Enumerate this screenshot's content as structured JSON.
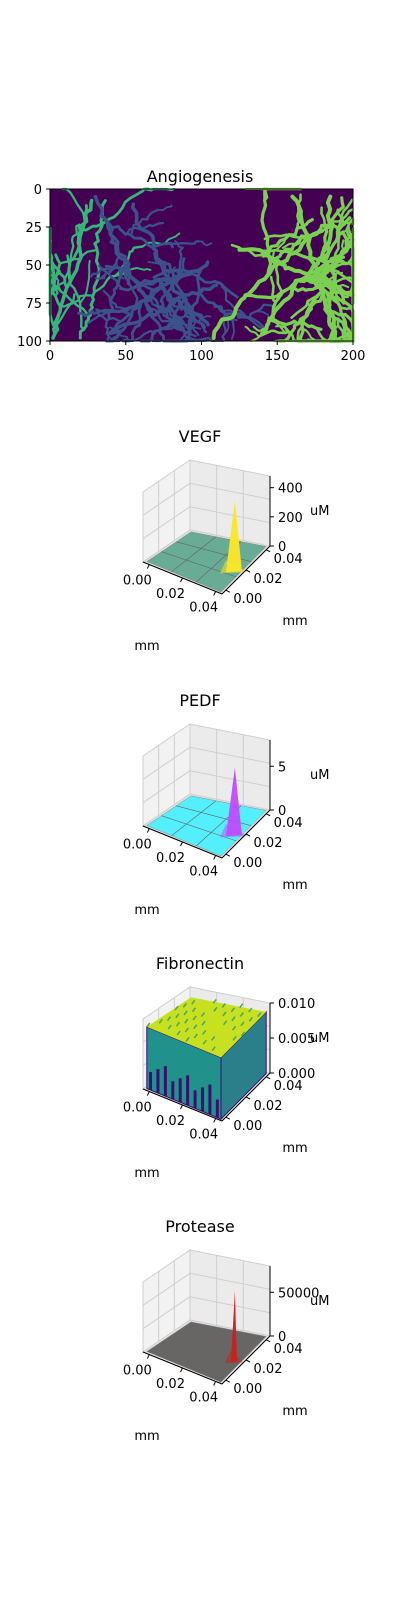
{
  "chart_data": [
    {
      "type": "heatmap",
      "title": "Angiogenesis",
      "xlim": [
        0,
        200
      ],
      "ylim": [
        100,
        0
      ],
      "xticks": [
        "0",
        "50",
        "100",
        "150",
        "200"
      ],
      "yticks": [
        "0",
        "25",
        "50",
        "75",
        "100"
      ],
      "colormap": "viridis",
      "colors": {
        "background": "#440154",
        "left_vessels": "#3b528b",
        "left_tips": "#35b779",
        "right_vessels": "#7ad151"
      }
    },
    {
      "type": "surface3d",
      "title": "VEGF",
      "xlabel": "mm",
      "ylabel": "mm",
      "zlabel": "uM",
      "xticks": [
        "0.00",
        "0.02",
        "0.04"
      ],
      "yticks": [
        "0.00",
        "0.02",
        "0.04"
      ],
      "zticks": [
        "0",
        "200",
        "400"
      ],
      "zlim": [
        0,
        480
      ],
      "peak": 470,
      "colors": {
        "surface": "#5aa58c",
        "peak": "#fde725"
      }
    },
    {
      "type": "surface3d",
      "title": "PEDF",
      "xlabel": "mm",
      "ylabel": "mm",
      "zlabel": "uM",
      "xticks": [
        "0.00",
        "0.02",
        "0.04"
      ],
      "yticks": [
        "0.00",
        "0.02",
        "0.04"
      ],
      "zticks": [
        "0",
        "5"
      ],
      "zlim": [
        0,
        8
      ],
      "peak": 7.5,
      "colors": {
        "surface": "#44f0ff",
        "peak": "#c04bff"
      }
    },
    {
      "type": "surface3d",
      "title": "Fibronectin",
      "xlabel": "mm",
      "ylabel": "mm",
      "zlabel": "uM",
      "xticks": [
        "0.00",
        "0.02",
        "0.04"
      ],
      "yticks": [
        "0.00",
        "0.02",
        "0.04"
      ],
      "zticks": [
        "0.000",
        "0.005",
        "0.010"
      ],
      "zlim": [
        0,
        0.01
      ],
      "peak": 0.01,
      "colors": {
        "top": "#c7e020",
        "wall": "#21918c",
        "base": "#3b0f70"
      }
    },
    {
      "type": "surface3d",
      "title": "Protease",
      "xlabel": "mm",
      "ylabel": "mm",
      "zlabel": "uM",
      "xticks": [
        "0.00",
        "0.02",
        "0.04"
      ],
      "yticks": [
        "0.00",
        "0.02",
        "0.04"
      ],
      "zticks": [
        "0",
        "50000"
      ],
      "zlim": [
        0,
        80000
      ],
      "peak": 78000,
      "colors": {
        "surface": "#5a5656",
        "peak": "#cc1f1a"
      }
    }
  ]
}
